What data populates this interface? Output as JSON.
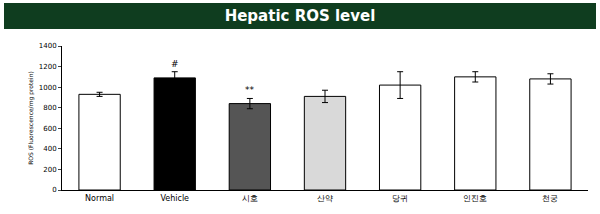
{
  "chart_data": {
    "type": "bar",
    "title": "Hepatic ROS level",
    "y_label": "ROS (Fluorescence/mg protein)",
    "categories": [
      "Normal",
      "Vehicle",
      "시호",
      "산약",
      "당귀",
      "인진호",
      "천궁"
    ],
    "values": [
      930,
      1090,
      840,
      910,
      1020,
      1100,
      1080
    ],
    "errors": [
      20,
      60,
      50,
      60,
      130,
      50,
      50
    ],
    "colors": [
      "#ffffff",
      "#000000",
      "#555555",
      "#d9d9d9",
      "#ffffff",
      "#ffffff",
      "#ffffff"
    ],
    "ylim": [
      0,
      1400
    ],
    "yticks": [
      0,
      200,
      400,
      600,
      800,
      1000,
      1200,
      1400
    ],
    "grid": false,
    "annotations": [
      {
        "text": "#",
        "category": "Vehicle"
      },
      {
        "text": "**",
        "category": "시호"
      }
    ]
  }
}
